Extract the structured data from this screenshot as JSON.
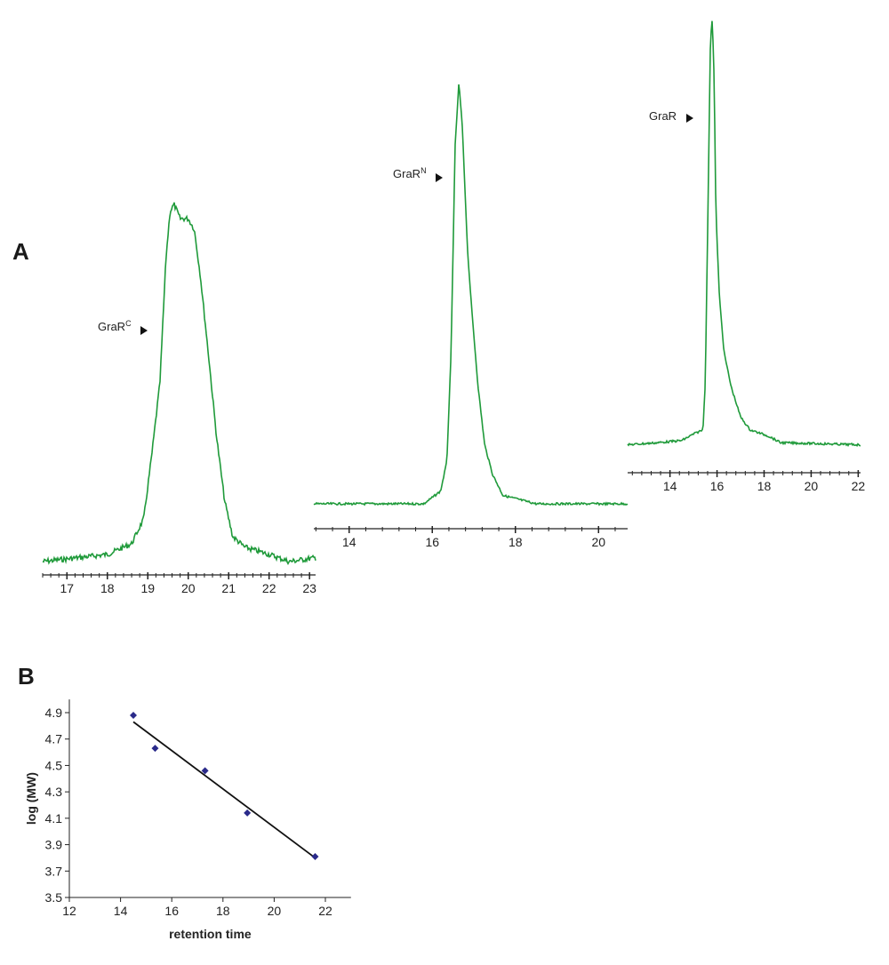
{
  "panel_labels": {
    "a": "A",
    "b": "B"
  },
  "colors": {
    "trace": "#1f9a3a",
    "marker": "#2a2a8a",
    "fit_line": "#111111",
    "axis": "#222222"
  },
  "chart_data": [
    {
      "type": "line",
      "panel": "A",
      "label": {
        "text": "GraR",
        "superscript": "C"
      },
      "xlim": [
        16.4,
        23.15
      ],
      "major_ticks": [
        17,
        18,
        19,
        20,
        21,
        22,
        23
      ],
      "minor_tick_step": 0.2,
      "grid": false,
      "trace": [
        [
          16.4,
          0
        ],
        [
          18.0,
          0.02
        ],
        [
          18.6,
          0.05
        ],
        [
          18.9,
          0.12
        ],
        [
          19.1,
          0.3
        ],
        [
          19.3,
          0.5
        ],
        [
          19.45,
          0.85
        ],
        [
          19.55,
          0.98
        ],
        [
          19.65,
          1.0
        ],
        [
          19.8,
          0.96
        ],
        [
          20.0,
          0.96
        ],
        [
          20.15,
          0.93
        ],
        [
          20.3,
          0.8
        ],
        [
          20.5,
          0.58
        ],
        [
          20.7,
          0.35
        ],
        [
          20.9,
          0.17
        ],
        [
          21.1,
          0.07
        ],
        [
          21.4,
          0.04
        ],
        [
          22.0,
          0.02
        ],
        [
          22.5,
          0.0
        ],
        [
          23.1,
          0.01
        ]
      ]
    },
    {
      "type": "line",
      "panel": "A",
      "label": {
        "text": "GraR",
        "superscript": "N"
      },
      "xlim": [
        13.15,
        20.7
      ],
      "major_ticks": [
        14,
        16,
        18,
        20
      ],
      "minor_tick_step": 0.4,
      "grid": false,
      "trace": [
        [
          13.15,
          0
        ],
        [
          15.8,
          0
        ],
        [
          16.2,
          0.03
        ],
        [
          16.35,
          0.1
        ],
        [
          16.45,
          0.35
        ],
        [
          16.55,
          0.85
        ],
        [
          16.64,
          1.0
        ],
        [
          16.72,
          0.9
        ],
        [
          16.85,
          0.6
        ],
        [
          16.95,
          0.46
        ],
        [
          17.1,
          0.28
        ],
        [
          17.26,
          0.14
        ],
        [
          17.45,
          0.07
        ],
        [
          17.7,
          0.02
        ],
        [
          18.5,
          0
        ],
        [
          20.7,
          0
        ]
      ]
    },
    {
      "type": "line",
      "panel": "A",
      "label": {
        "text": "GraR",
        "superscript": ""
      },
      "xlim": [
        12.2,
        22.1
      ],
      "major_ticks": [
        14,
        16,
        18,
        20,
        22
      ],
      "minor_tick_step": 0.4,
      "grid": false,
      "trace": [
        [
          12.2,
          0.005
        ],
        [
          13.5,
          0.01
        ],
        [
          14.5,
          0.015
        ],
        [
          15.0,
          0.03
        ],
        [
          15.4,
          0.04
        ],
        [
          15.5,
          0.15
        ],
        [
          15.6,
          0.5
        ],
        [
          15.72,
          0.95
        ],
        [
          15.8,
          1.0
        ],
        [
          15.88,
          0.85
        ],
        [
          15.95,
          0.55
        ],
        [
          16.1,
          0.35
        ],
        [
          16.3,
          0.22
        ],
        [
          16.6,
          0.14
        ],
        [
          17.0,
          0.07
        ],
        [
          17.4,
          0.04
        ],
        [
          18.2,
          0.025
        ],
        [
          18.7,
          0.01
        ],
        [
          22.1,
          0.005
        ]
      ]
    },
    {
      "type": "scatter",
      "panel": "B",
      "xlabel": "retention time",
      "ylabel": "log (MW)",
      "xlim": [
        12,
        23
      ],
      "ylim": [
        3.5,
        5.0
      ],
      "xticks": [
        12,
        14,
        16,
        18,
        20,
        22
      ],
      "yticks": [
        3.5,
        3.7,
        3.9,
        4.1,
        4.3,
        4.5,
        4.7,
        4.9
      ],
      "grid": false,
      "points": [
        [
          14.5,
          4.88
        ],
        [
          15.35,
          4.63
        ],
        [
          17.3,
          4.46
        ],
        [
          18.95,
          4.14
        ],
        [
          21.6,
          3.81
        ]
      ],
      "fit_line": [
        [
          14.5,
          4.83
        ],
        [
          21.6,
          3.8
        ]
      ]
    }
  ]
}
